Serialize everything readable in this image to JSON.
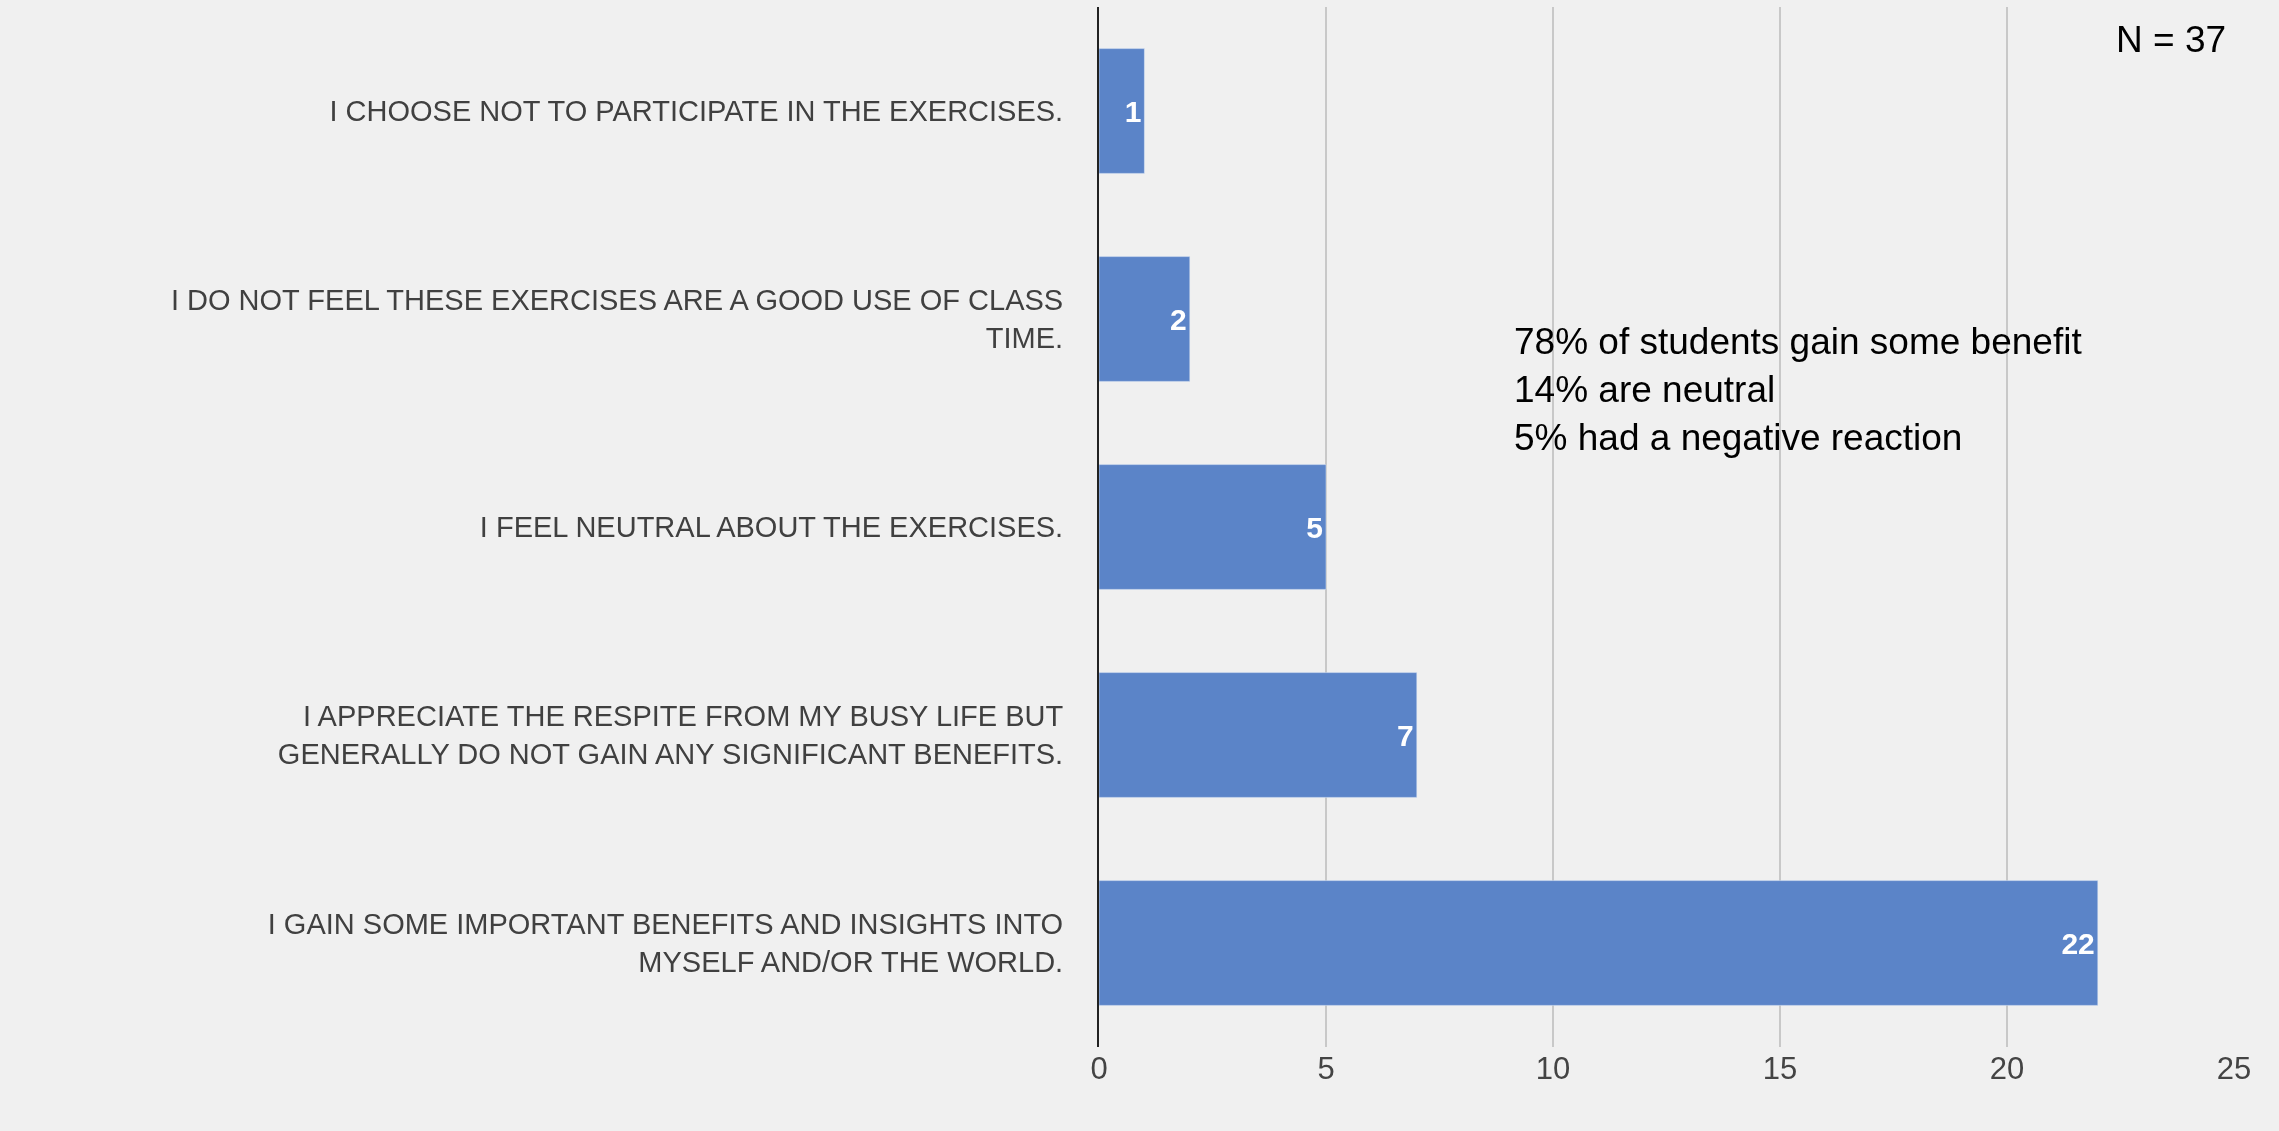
{
  "chart_data": {
    "type": "bar",
    "orientation": "horizontal",
    "categories": [
      "I CHOOSE NOT TO PARTICIPATE IN THE EXERCISES.",
      "I DO NOT FEEL THESE EXERCISES ARE A GOOD USE OF CLASS TIME.",
      "I FEEL NEUTRAL ABOUT THE EXERCISES.",
      "I APPRECIATE THE RESPITE FROM MY BUSY LIFE BUT GENERALLY DO NOT GAIN ANY SIGNIFICANT BENEFITS.",
      "I GAIN SOME IMPORTANT BENEFITS AND INSIGHTS INTO MYSELF AND/OR THE WORLD."
    ],
    "values": [
      1,
      2,
      5,
      7,
      22
    ],
    "color": "#5b84c8",
    "data_labels": true,
    "xlim": [
      0,
      25
    ],
    "xticks": [
      0,
      5,
      10,
      15,
      20,
      25
    ],
    "grid": "x",
    "legend": false,
    "annotations": [
      "N = 37",
      "78% of students gain some benefit\n14% are neutral\n5% had a negative reaction"
    ]
  }
}
